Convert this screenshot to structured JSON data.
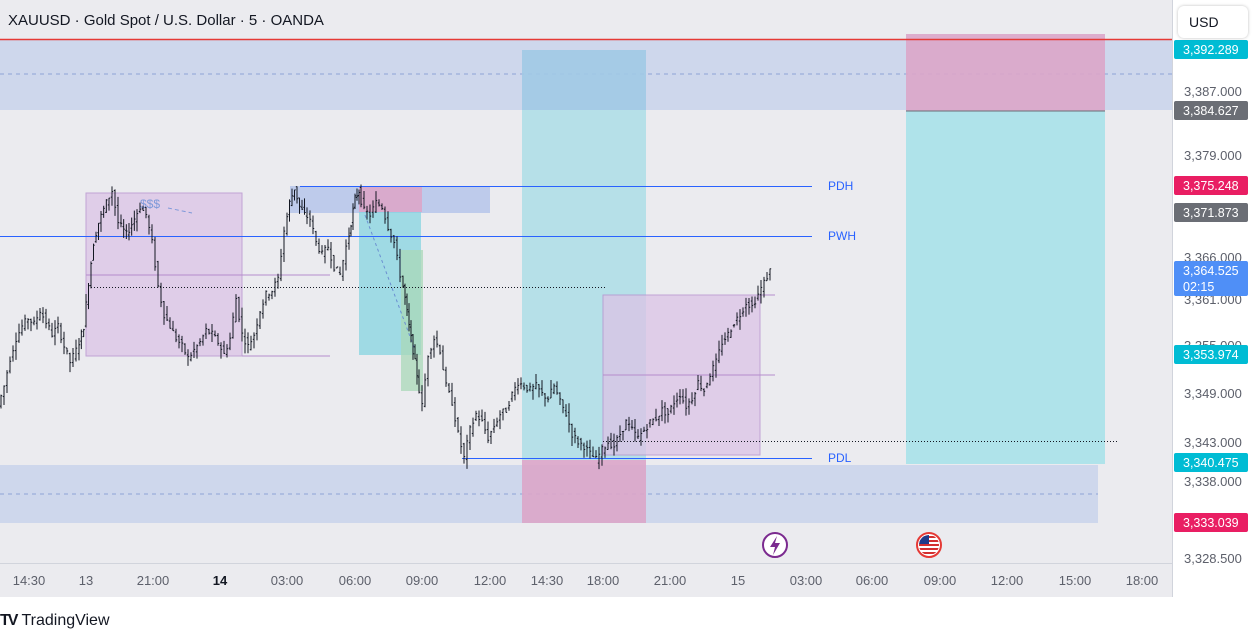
{
  "header": {
    "symbol_title": "XAUUSD · Gold Spot / U.S. Dollar · 5 · OANDA",
    "currency_button": "USD"
  },
  "branding": {
    "logo": "TV",
    "name": "TradingView"
  },
  "colors": {
    "plot_bg": "#ebebef",
    "price_axis_bg": "#ffffff",
    "grid": "#dcdde2",
    "candle": "#131722",
    "blue_zone": "#b6c6ea",
    "cyan_zone": "#a4dce6",
    "pink_zone": "#dba6c9",
    "purple_box": "#dcc3e6",
    "level_line": "#2962ff",
    "red_line": "#e53935",
    "tag_grey": "#6b6e75",
    "tag_red": "#e91e63",
    "tag_teal": "#00bcd4",
    "tag_blue": "#4f8ff7"
  },
  "icons": [
    "lightning-event-icon",
    "us-flag-event-icon"
  ],
  "chart_data": {
    "type": "candlestick",
    "title": "XAUUSD · Gold Spot / U.S. Dollar · 5 · OANDA",
    "interval": "5",
    "ylim": [
      3326.0,
      3395.0
    ],
    "grid": true,
    "price_axis_labels": [
      "3,387.000",
      "3,379.000",
      "3,366.000",
      "3,361.000",
      "3,355.000",
      "3,349.000",
      "3,343.000",
      "3,338.000",
      "3,328.500"
    ],
    "time_axis_labels": [
      {
        "label": "14:30",
        "bold": false
      },
      {
        "label": "13",
        "bold": false
      },
      {
        "label": "21:00",
        "bold": false
      },
      {
        "label": "14",
        "bold": true
      },
      {
        "label": "03:00",
        "bold": false
      },
      {
        "label": "06:00",
        "bold": false
      },
      {
        "label": "09:00",
        "bold": false
      },
      {
        "label": "12:00",
        "bold": false
      },
      {
        "label": "14:30",
        "bold": false
      },
      {
        "label": "18:00",
        "bold": false
      },
      {
        "label": "21:00",
        "bold": false
      },
      {
        "label": "15",
        "bold": false
      },
      {
        "label": "03:00",
        "bold": false
      },
      {
        "label": "06:00",
        "bold": false
      },
      {
        "label": "09:00",
        "bold": false
      },
      {
        "label": "12:00",
        "bold": false
      },
      {
        "label": "15:00",
        "bold": false
      },
      {
        "label": "18:00",
        "bold": false
      }
    ],
    "price_tags": [
      {
        "value": "3,392.289",
        "price": 3392.289,
        "color": "tag_teal"
      },
      {
        "value": "3,384.627",
        "price": 3384.627,
        "color": "tag_grey"
      },
      {
        "value": "3,375.248",
        "price": 3375.248,
        "color": "tag_red"
      },
      {
        "value": "3,371.873",
        "price": 3371.873,
        "color": "tag_grey"
      },
      {
        "value": "3,364.525",
        "price": 3364.525,
        "color": "tag_blue",
        "countdown": "02:15"
      },
      {
        "value": "3,353.974",
        "price": 3353.974,
        "color": "tag_teal"
      },
      {
        "value": "3,340.475",
        "price": 3340.475,
        "color": "tag_teal"
      },
      {
        "value": "3,333.039",
        "price": 3333.039,
        "color": "tag_red"
      }
    ],
    "key_levels": [
      {
        "label": "PDH",
        "price": 3375.2
      },
      {
        "label": "PWH",
        "price": 3369.0
      },
      {
        "label": "PDL",
        "price": 3340.5
      }
    ],
    "annotations": [
      "$$$"
    ],
    "zones": {
      "supply_top": [
        3384.6,
        3393.0
      ],
      "demand_bottom": [
        3333.0,
        3340.5
      ],
      "position_tool": {
        "target": 3384.627,
        "entry": 3340.475,
        "stop": 3393.0
      }
    },
    "series": [
      {
        "name": "XAUUSD",
        "segments": [
          {
            "x": [
              0,
              6,
              12,
              18,
              24,
              30,
              36,
              42,
              48,
              54,
              60,
              66,
              72,
              78
            ],
            "y": [
              3347.5,
              3350.0,
              3353.5,
              3356.0,
              3357.5,
              3358.5,
              3357.8,
              3359.5,
              3358.0,
              3356.5,
              3357.5,
              3355.0,
              3353.0,
              3354.5
            ]
          },
          {
            "x": [
              78,
              85,
              90,
              95,
              100,
              108,
              114,
              120,
              128,
              136,
              142,
              148,
              154,
              160,
              166,
              172,
              178,
              184,
              190,
              196,
              202,
              208,
              214,
              220,
              226,
              232,
              238,
              244,
              250,
              256,
              262,
              268,
              274,
              280
            ],
            "y": [
              3354.5,
              3357.5,
              3363.0,
              3368.0,
              3370.5,
              3373.0,
              3374.5,
              3370.5,
              3369.0,
              3371.0,
              3372.5,
              3371.5,
              3368.0,
              3362.5,
              3359.0,
              3357.5,
              3356.0,
              3355.0,
              3353.5,
              3354.5,
              3355.5,
              3357.0,
              3356.5,
              3355.5,
              3354.0,
              3356.0,
              3361.0,
              3356.5,
              3355.0,
              3356.5,
              3359.5,
              3361.5,
              3362.0,
              3363.5
            ]
          },
          {
            "x": [
              280,
              286,
              291,
              296,
              301,
              306,
              312,
              318,
              324,
              330,
              336,
              342,
              348,
              352,
              356,
              360,
              366,
              372,
              378,
              384,
              390,
              396,
              402,
              406,
              410,
              414,
              418,
              424,
              430,
              436,
              442,
              448,
              454,
              460,
              466,
              472,
              478,
              484,
              490,
              496,
              502,
              508,
              514,
              520,
              526,
              532,
              538,
              544,
              550,
              556,
              562,
              568,
              574,
              580,
              586,
              592,
              598,
              604
            ],
            "y": [
              3363.5,
              3369.5,
              3373.0,
              3374.8,
              3372.5,
              3371.5,
              3371.0,
              3368.0,
              3366.5,
              3367.5,
              3365.0,
              3364.0,
              3367.5,
              3370.5,
              3373.5,
              3374.5,
              3372.0,
              3371.5,
              3373.0,
              3372.5,
              3370.0,
              3368.0,
              3364.0,
              3361.0,
              3357.5,
              3354.5,
              3351.5,
              3347.5,
              3354.0,
              3356.0,
              3354.5,
              3350.0,
              3348.0,
              3344.0,
              3341.0,
              3344.5,
              3346.5,
              3345.5,
              3343.5,
              3345.0,
              3346.5,
              3347.0,
              3349.0,
              3350.5,
              3350.0,
              3349.5,
              3350.0,
              3349.0,
              3348.5,
              3350.0,
              3348.0,
              3346.5,
              3344.0,
              3343.0,
              3342.5,
              3341.5,
              3340.8,
              3342.0
            ]
          },
          {
            "x": [
              604,
              610,
              616,
              622,
              628,
              634,
              640,
              646,
              652,
              658,
              664,
              670,
              676,
              682,
              688,
              694,
              700,
              706,
              712,
              718,
              724,
              730,
              736,
              742,
              748,
              754,
              760,
              766,
              772
            ],
            "y": [
              3342.0,
              3343.0,
              3342.5,
              3344.0,
              3345.5,
              3344.5,
              3343.5,
              3344.5,
              3345.5,
              3346.0,
              3347.0,
              3346.5,
              3348.0,
              3349.0,
              3347.5,
              3348.5,
              3350.5,
              3349.5,
              3351.5,
              3353.0,
              3355.5,
              3356.5,
              3358.0,
              3359.0,
              3360.5,
              3360.0,
              3361.5,
              3363.0,
              3364.5
            ]
          }
        ]
      }
    ]
  }
}
